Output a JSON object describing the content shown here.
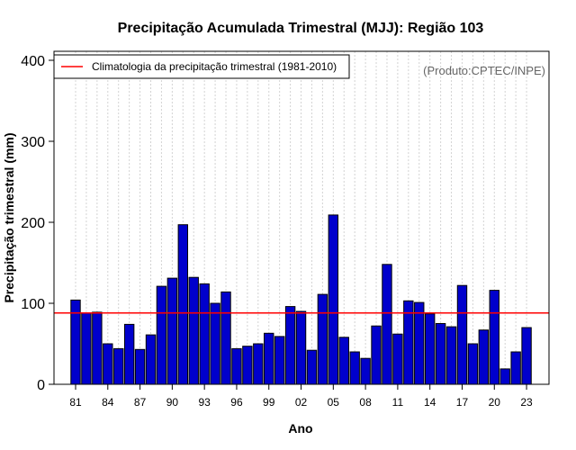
{
  "chart_data": {
    "type": "bar",
    "title": "Precipitação Acumulada Trimestral (MJJ): Região 103",
    "xlabel": "Ano",
    "ylabel": "Precipitação trimestral (mm)",
    "ylim": [
      0,
      400
    ],
    "yticks": [
      0,
      100,
      200,
      300,
      400
    ],
    "ytick_labels": [
      "0",
      "100",
      "200",
      "300",
      "400"
    ],
    "years": [
      1981,
      1982,
      1983,
      1984,
      1985,
      1986,
      1987,
      1988,
      1989,
      1990,
      1991,
      1992,
      1993,
      1994,
      1995,
      1996,
      1997,
      1998,
      1999,
      2000,
      2001,
      2002,
      2003,
      2004,
      2005,
      2006,
      2007,
      2008,
      2009,
      2010,
      2011,
      2012,
      2013,
      2014,
      2015,
      2016,
      2017,
      2018,
      2019,
      2020,
      2021,
      2022,
      2023
    ],
    "xtick_labels": [
      "81",
      "84",
      "87",
      "90",
      "93",
      "96",
      "99",
      "02",
      "05",
      "08",
      "11",
      "14",
      "17",
      "20",
      "23"
    ],
    "xtick_years": [
      1981,
      1984,
      1987,
      1990,
      1993,
      1996,
      1999,
      2002,
      2005,
      2008,
      2011,
      2014,
      2017,
      2020,
      2023
    ],
    "values": [
      104,
      88,
      89,
      50,
      44,
      74,
      43,
      61,
      121,
      131,
      197,
      132,
      124,
      100,
      114,
      44,
      47,
      50,
      63,
      59,
      96,
      90,
      42,
      111,
      209,
      58,
      40,
      32,
      72,
      148,
      62,
      103,
      101,
      87,
      75,
      71,
      122,
      50,
      67,
      116,
      19,
      40,
      70
    ],
    "climatology": 88,
    "legend": {
      "label": "Climatologia da precipitação trimestral (1981-2010)",
      "position": "top-left"
    },
    "source": "(Produto:CPTEC/INPE)",
    "colors": {
      "bar_fill": "#0000cc",
      "bar_stroke": "#000000",
      "climatology_line": "#ff0000",
      "grid": "#d3d3d3"
    },
    "grid": true
  }
}
